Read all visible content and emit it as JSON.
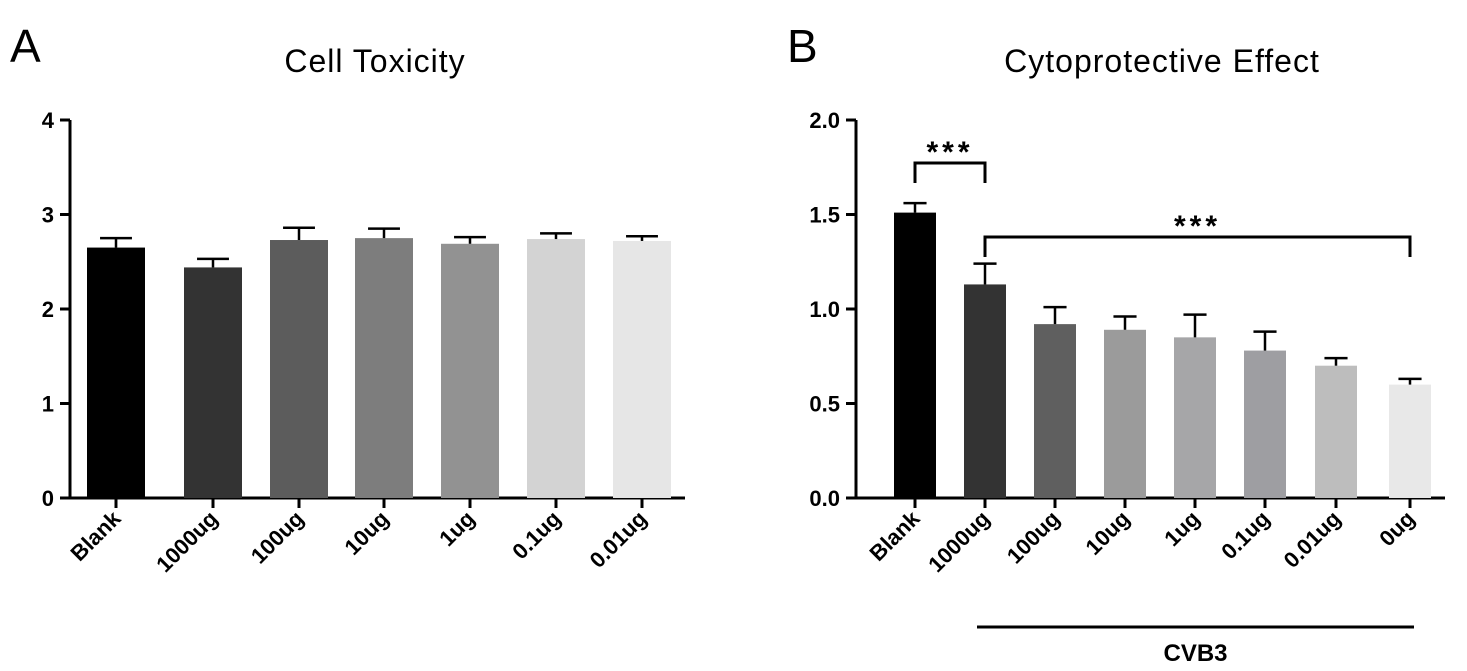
{
  "panels": {
    "a": {
      "letter": "A"
    },
    "b": {
      "letter": "B"
    }
  },
  "chart_data": [
    {
      "type": "bar",
      "title": "Cell Toxicity",
      "xlabel": "",
      "ylabel": "",
      "ylim": [
        0,
        4
      ],
      "yticks": [
        "0",
        "1",
        "2",
        "3",
        "4"
      ],
      "categories": [
        "Blank",
        "1000ug",
        "100ug",
        "10ug",
        "1ug",
        "0.1ug",
        "0.01ug"
      ],
      "values": [
        2.65,
        2.44,
        2.73,
        2.75,
        2.69,
        2.74,
        2.72
      ],
      "errors": [
        0.1,
        0.09,
        0.13,
        0.1,
        0.07,
        0.06,
        0.05
      ],
      "colors": [
        "#000000",
        "#333333",
        "#5c5c5c",
        "#7d7d7d",
        "#929292",
        "#d3d3d3",
        "#e6e6e6"
      ],
      "grid": false
    },
    {
      "type": "bar",
      "title": "Cytoprotective Effect",
      "xlabel": "",
      "ylabel": "",
      "ylim": [
        0,
        2.0
      ],
      "yticks": [
        "0.0",
        "0.5",
        "1.0",
        "1.5",
        "2.0"
      ],
      "categories": [
        "Blank",
        "1000ug",
        "100ug",
        "10ug",
        "1ug",
        "0.1ug",
        "0.01ug",
        "0ug"
      ],
      "values": [
        1.51,
        1.13,
        0.92,
        0.89,
        0.85,
        0.78,
        0.7,
        0.6
      ],
      "errors": [
        0.05,
        0.11,
        0.09,
        0.07,
        0.12,
        0.1,
        0.04,
        0.03
      ],
      "colors": [
        "#000000",
        "#333333",
        "#5f5f5f",
        "#9b9b9b",
        "#a6a6a8",
        "#9e9ea2",
        "#bdbdbd",
        "#e8e8e8"
      ],
      "grid": false,
      "annotations": [
        {
          "label": "***",
          "from": 0,
          "to": 1
        },
        {
          "label": "***",
          "from": 1,
          "to": 7
        }
      ],
      "group": {
        "label": "CVB3",
        "from": 1,
        "to": 7
      }
    }
  ]
}
